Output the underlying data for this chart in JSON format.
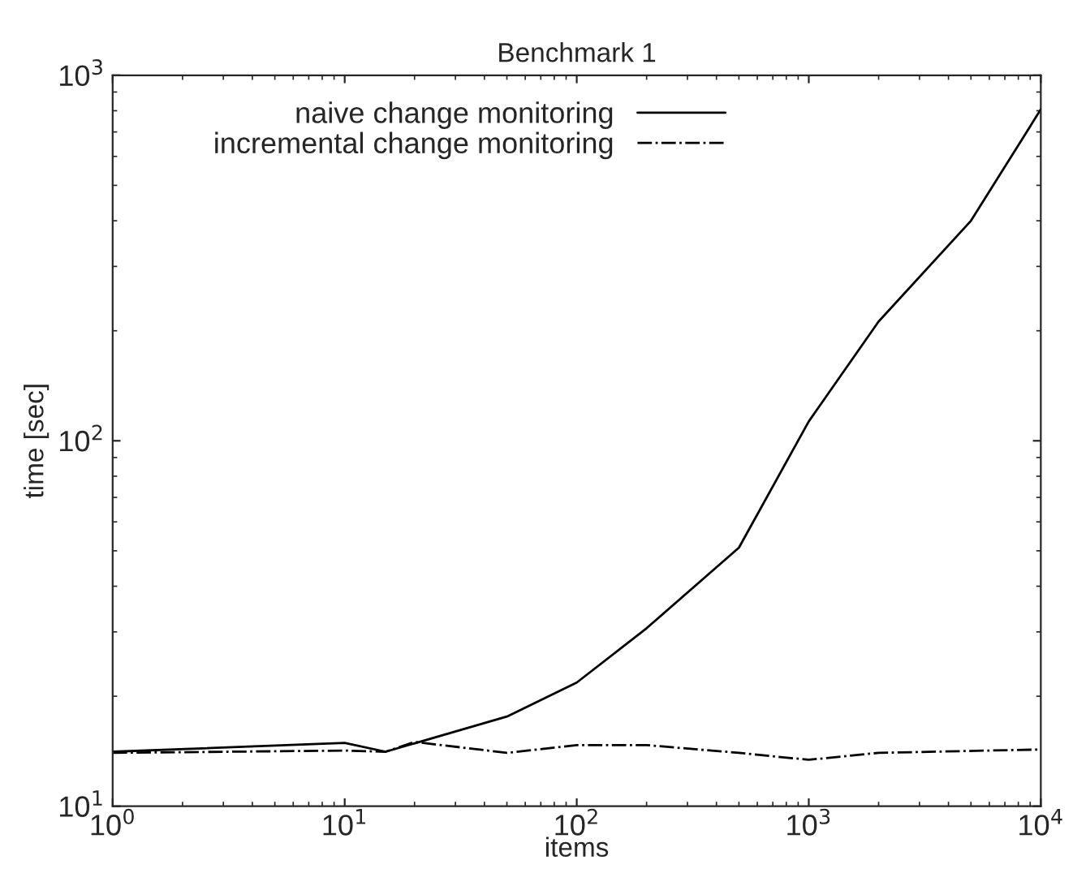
{
  "chart_data": {
    "type": "line",
    "title": "Benchmark 1",
    "xlabel": "items",
    "ylabel": "time [sec]",
    "log": "xy",
    "xlim": [
      1,
      10000
    ],
    "ylim": [
      10,
      1000
    ],
    "xticks": [
      {
        "value": 1,
        "label": "10$^{0}$"
      },
      {
        "value": 10,
        "label": "10$^{1}$"
      },
      {
        "value": 100,
        "label": "10$^{2}$"
      },
      {
        "value": 1000,
        "label": "10$^{3}$"
      },
      {
        "value": 10000,
        "label": "10$^{4}$"
      }
    ],
    "yticks": [
      {
        "value": 10,
        "label": "10$^{1}$"
      },
      {
        "value": 100,
        "label": "10$^{2}$"
      },
      {
        "value": 1000,
        "label": "10$^{3}$"
      }
    ],
    "grid": false,
    "legend": "top left",
    "marker": "none",
    "series": [
      {
        "name": "naive change monitoring",
        "color": "#000000",
        "line_style": "solid",
        "x": [
          1,
          10,
          15,
          50,
          100,
          200,
          500,
          1000,
          2000,
          5000,
          10000
        ],
        "values": [
          14.1,
          14.9,
          14.1,
          17.6,
          21.8,
          30.7,
          51,
          113,
          212,
          400,
          807
        ]
      },
      {
        "name": "incremental change monitoring",
        "color": "#000000",
        "line_style": "dashdot",
        "x": [
          1,
          10,
          15,
          20,
          50,
          100,
          200,
          500,
          1000,
          2000,
          10000
        ],
        "values": [
          14.0,
          14.2,
          14.1,
          15.0,
          14.0,
          14.7,
          14.7,
          14.0,
          13.4,
          14.0,
          14.3
        ]
      }
    ]
  }
}
